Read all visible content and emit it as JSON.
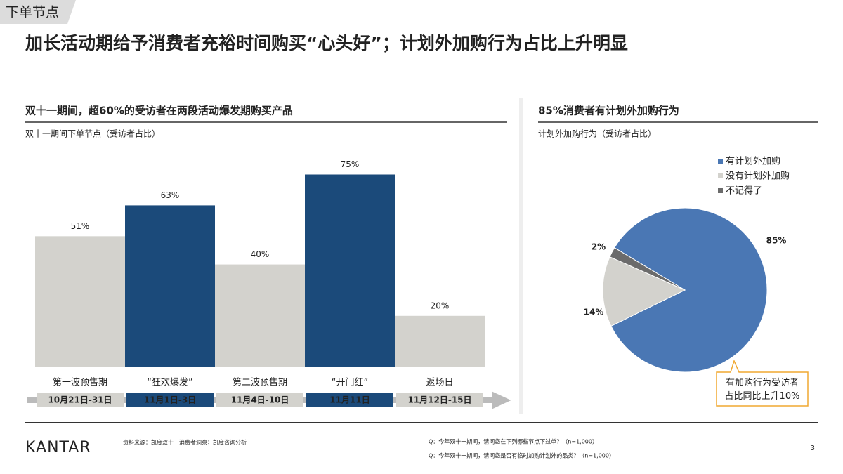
{
  "tag": "下单节点",
  "title": "加长活动期给予消费者充裕时间购买“心头好”；计划外加购行为占比上升明显",
  "chart_data": [
    {
      "type": "bar",
      "title": "双十一期间，超60%的受访者在两段活动爆发期购买产品",
      "subtitle": "双十一期间下单节点（受访者占比）",
      "categories": [
        "第一波预售期",
        "“狂欢爆发”",
        "第二波预售期",
        "“开门红”",
        "返场日"
      ],
      "dates": [
        "10月21日-31日",
        "11月1日-3日",
        "11月4日-10日",
        "11月11日",
        "11月12日-15日"
      ],
      "values": [
        51,
        63,
        40,
        75,
        20
      ],
      "value_labels": [
        "51%",
        "63%",
        "40%",
        "75%",
        "20%"
      ],
      "colors": [
        "#d3d2cd",
        "#1b4a7a",
        "#d3d2cd",
        "#1b4a7a",
        "#d3d2cd"
      ]
    },
    {
      "type": "pie",
      "title": "85%消费者有计划外加购行为",
      "subtitle": "计划外加购行为（受访者占比）",
      "categories": [
        "有计划外加购",
        "没有计划外加购",
        "不记得了"
      ],
      "values": [
        85,
        14,
        2
      ],
      "value_labels": [
        "85%",
        "14%",
        "2%"
      ],
      "colors": [
        "#4a77b4",
        "#d3d2cd",
        "#6b6b6b"
      ],
      "annotation": "有加购行为受访者占比同比上升10%"
    }
  ],
  "footer": {
    "logo": "KANTAR",
    "source": "资料来源：凯度双十一消费者洞察；凯度咨询分析",
    "notes": [
      "Q：今年双十一期间，请问您在下列哪些节点下过单？（n=1,000）",
      "Q：今年双十一期间，请问您是否有临时加购计划外的品类？（n=1,000）"
    ],
    "page": 3
  }
}
